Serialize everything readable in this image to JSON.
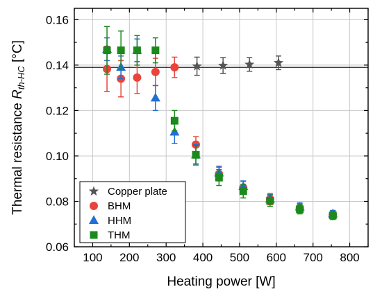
{
  "chart_data": {
    "type": "scatter",
    "xlabel": "Heating power [W]",
    "ylabel_prefix": "Thermal resistance ",
    "ylabel_symbol": "R",
    "ylabel_subscript": "th-HC",
    "ylabel_unit": " [°C]",
    "xlim": [
      50,
      850
    ],
    "ylim": [
      0.06,
      0.165
    ],
    "xticks": [
      100,
      200,
      300,
      400,
      500,
      600,
      700,
      800
    ],
    "yticks": [
      0.06,
      0.08,
      0.1,
      0.12,
      0.14,
      0.16
    ],
    "grid": true,
    "legend_position": "bottom-left",
    "reference_line": {
      "y": 0.139,
      "color": "#000000"
    },
    "series": [
      {
        "name": "Copper plate",
        "marker": "star",
        "color": "#555555",
        "points": [
          {
            "x": 384,
            "y": 0.1395,
            "err": 0.004
          },
          {
            "x": 455,
            "y": 0.1398,
            "err": 0.0035
          },
          {
            "x": 527,
            "y": 0.1403,
            "err": 0.003
          },
          {
            "x": 606,
            "y": 0.141,
            "err": 0.003
          }
        ]
      },
      {
        "name": "BHM",
        "marker": "circle",
        "color": "#e8453c",
        "points": [
          {
            "x": 139,
            "y": 0.1383,
            "err": 0.01
          },
          {
            "x": 177,
            "y": 0.134,
            "err": 0.008
          },
          {
            "x": 221,
            "y": 0.1345,
            "err": 0.007
          },
          {
            "x": 271,
            "y": 0.137,
            "err": 0.006
          },
          {
            "x": 323,
            "y": 0.139,
            "err": 0.0045
          },
          {
            "x": 381,
            "y": 0.105,
            "err": 0.0035
          },
          {
            "x": 444,
            "y": 0.092,
            "err": 0.003
          },
          {
            "x": 510,
            "y": 0.086,
            "err": 0.0028
          },
          {
            "x": 583,
            "y": 0.081,
            "err": 0.0025
          },
          {
            "x": 664,
            "y": 0.077,
            "err": 0.002
          },
          {
            "x": 754,
            "y": 0.0742,
            "err": 0.0018
          }
        ]
      },
      {
        "name": "HHM",
        "marker": "triangle",
        "color": "#1f6fd6",
        "points": [
          {
            "x": 139,
            "y": 0.147,
            "err": 0.005
          },
          {
            "x": 177,
            "y": 0.139,
            "err": 0.005
          },
          {
            "x": 221,
            "y": 0.1465,
            "err": 0.005
          },
          {
            "x": 271,
            "y": 0.1255,
            "err": 0.0055
          },
          {
            "x": 323,
            "y": 0.1105,
            "err": 0.005
          },
          {
            "x": 381,
            "y": 0.1005,
            "err": 0.0045
          },
          {
            "x": 444,
            "y": 0.0925,
            "err": 0.003
          },
          {
            "x": 510,
            "y": 0.0865,
            "err": 0.0025
          },
          {
            "x": 583,
            "y": 0.081,
            "err": 0.002
          },
          {
            "x": 664,
            "y": 0.0775,
            "err": 0.0018
          },
          {
            "x": 754,
            "y": 0.0745,
            "err": 0.0015
          }
        ]
      },
      {
        "name": "THM",
        "marker": "square",
        "color": "#1b8a1b",
        "points": [
          {
            "x": 139,
            "y": 0.1465,
            "err": 0.0105
          },
          {
            "x": 177,
            "y": 0.1465,
            "err": 0.0085
          },
          {
            "x": 221,
            "y": 0.1465,
            "err": 0.0065
          },
          {
            "x": 271,
            "y": 0.1465,
            "err": 0.0055
          },
          {
            "x": 323,
            "y": 0.1155,
            "err": 0.0045
          },
          {
            "x": 381,
            "y": 0.1005,
            "err": 0.004
          },
          {
            "x": 444,
            "y": 0.0905,
            "err": 0.0035
          },
          {
            "x": 510,
            "y": 0.0845,
            "err": 0.003
          },
          {
            "x": 583,
            "y": 0.0803,
            "err": 0.0025
          },
          {
            "x": 664,
            "y": 0.0765,
            "err": 0.002
          },
          {
            "x": 754,
            "y": 0.0738,
            "err": 0.0018
          }
        ]
      }
    ]
  }
}
